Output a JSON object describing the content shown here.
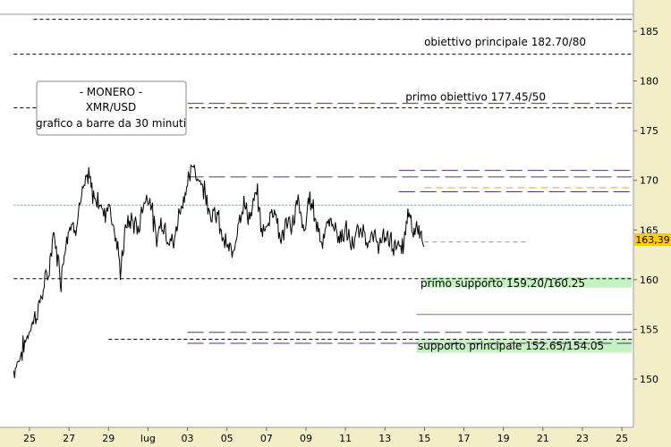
{
  "colors": {
    "background": "#ffffff",
    "axis_panel": "#f2eec7",
    "price": "#000000",
    "level_black": "#000000",
    "level_purple": "#5a2d78",
    "level_pink": "#e07a86",
    "level_orange": "#e6a030",
    "support_fill": "#c4f2c0",
    "support_line": "#3ca03c",
    "last_price_bg": "#ffcc00"
  },
  "chart_data": {
    "type": "line",
    "title_box": {
      "line1": "- MONERO -",
      "line2": "XMR/USD",
      "line3": "grafico a barre da 30 minuti"
    },
    "ylim": [
      146.5,
      189
    ],
    "yticks": [
      150,
      155,
      160,
      165,
      170,
      175,
      180,
      185
    ],
    "yticks_labels": [
      "150",
      "155",
      "160",
      "165",
      "170",
      "175",
      "180",
      "185"
    ],
    "xlim": [
      24.2,
      25.7
    ],
    "xticks": [
      {
        "label": "25",
        "day": 25
      },
      {
        "label": "27",
        "day": 27
      },
      {
        "label": "29",
        "day": 29
      },
      {
        "label": "lug",
        "day": 31
      },
      {
        "label": "03",
        "day": 33
      },
      {
        "label": "05",
        "day": 35
      },
      {
        "label": "07",
        "day": 37
      },
      {
        "label": "09",
        "day": 39
      },
      {
        "label": "11",
        "day": 41
      },
      {
        "label": "13",
        "day": 43
      },
      {
        "label": "15",
        "day": 45
      },
      {
        "label": "17",
        "day": 47
      },
      {
        "label": "19",
        "day": 49
      },
      {
        "label": "21",
        "day": 51
      },
      {
        "label": "23",
        "day": 53
      },
      {
        "label": "25",
        "day": 55
      }
    ],
    "last_price": 163.39,
    "last_price_label": "163,39",
    "annotations": [
      {
        "text": "obiettivo principale 182.70/80",
        "value": 182.75
      },
      {
        "text": "primo obiettivo 177.45/50",
        "value": 177.48
      },
      {
        "text": "primo supporto 159.20/160.25",
        "value": 159.7
      },
      {
        "text": "supporto principale 152.65/154.05",
        "value": 153.35
      }
    ],
    "levels": [
      {
        "value": 186.2,
        "style": "black-dash",
        "from": 25.2,
        "to": 55.5
      },
      {
        "value": 186.2,
        "style": "purple-long",
        "from": 33.0,
        "to": 55.5
      },
      {
        "value": 182.7,
        "style": "black-dash",
        "from": 24.2,
        "to": 55.5
      },
      {
        "value": 177.75,
        "style": "purple-long",
        "from": 33.0,
        "to": 55.5
      },
      {
        "value": 177.3,
        "style": "black-dash",
        "from": 24.2,
        "to": 55.5
      },
      {
        "value": 171.0,
        "style": "purple-long",
        "from": 43.7,
        "to": 55.5
      },
      {
        "value": 170.35,
        "style": "purple-long",
        "from": 33.0,
        "to": 55.5
      },
      {
        "value": 169.25,
        "style": "orange-long",
        "from": 45.0,
        "to": 55.5
      },
      {
        "value": 168.85,
        "style": "purple-long",
        "from": 43.7,
        "to": 55.5
      },
      {
        "value": 167.5,
        "style": "pink-dot",
        "from": 24.2,
        "to": 55.5
      },
      {
        "value": 163.8,
        "style": "gray-dash",
        "from": 45.0,
        "to": 50.2
      },
      {
        "value": 160.1,
        "style": "black-dash",
        "from": 24.2,
        "to": 55.5
      },
      {
        "value": 156.5,
        "style": "green-solid",
        "from": 44.6,
        "to": 55.5
      },
      {
        "value": 154.7,
        "style": "purple-long",
        "from": 33.0,
        "to": 55.5
      },
      {
        "value": 154.0,
        "style": "black-dash",
        "from": 29.0,
        "to": 55.5
      },
      {
        "value": 153.6,
        "style": "purple-long",
        "from": 33.0,
        "to": 55.5
      }
    ],
    "support_zones": [
      {
        "from_value": 159.2,
        "to_value": 160.25,
        "from_day": 45.0,
        "to_day": 55.5
      },
      {
        "from_value": 152.65,
        "to_value": 154.05,
        "from_day": 44.6,
        "to_day": 55.5
      }
    ],
    "series": [
      {
        "x": [
          24.2,
          24.5,
          24.8,
          25.1,
          25.4,
          25.7,
          26.0,
          26.2,
          26.4,
          26.6,
          26.8,
          27.0,
          27.3,
          27.6,
          28.0,
          28.2,
          28.5,
          28.8,
          29.0,
          29.3,
          29.6,
          29.9,
          30.2,
          30.5,
          30.8,
          31.1,
          31.4,
          31.7,
          32.0,
          32.3,
          32.6,
          33.0,
          33.3,
          33.6,
          33.9,
          34.2,
          34.5,
          34.8,
          35.1,
          35.3,
          35.6,
          35.9,
          36.2,
          36.5,
          36.8,
          37.1,
          37.4,
          37.7,
          38.0,
          38.3,
          38.6,
          38.9,
          39.2,
          39.5,
          39.8,
          40.1,
          40.4,
          40.7,
          41.0,
          41.3,
          41.6,
          41.9,
          42.2,
          42.5,
          42.8,
          43.1,
          43.4,
          43.6,
          43.8,
          44.0,
          44.2,
          44.4,
          44.6,
          44.8,
          45.0
        ],
        "y": [
          150.8,
          152.2,
          153.8,
          155.5,
          156.8,
          159.0,
          161.0,
          164.8,
          162.5,
          160.0,
          163.5,
          165.5,
          165.2,
          168.0,
          170.5,
          168.5,
          168.0,
          166.5,
          168.0,
          165.0,
          161.0,
          165.5,
          166.0,
          165.0,
          168.0,
          168.5,
          164.0,
          166.0,
          164.5,
          163.5,
          167.0,
          169.5,
          171.5,
          170.0,
          169.0,
          166.5,
          166.5,
          164.0,
          163.0,
          162.5,
          166.5,
          167.5,
          166.0,
          169.0,
          164.5,
          166.0,
          167.5,
          164.0,
          165.5,
          165.5,
          168.0,
          164.5,
          168.5,
          166.0,
          164.0,
          165.5,
          165.8,
          164.0,
          165.0,
          163.5,
          164.5,
          165.0,
          163.8,
          164.2,
          163.5,
          164.5,
          163.5,
          163.8,
          162.7,
          164.0,
          167.0,
          164.5,
          165.5,
          165.0,
          163.39
        ]
      }
    ]
  }
}
